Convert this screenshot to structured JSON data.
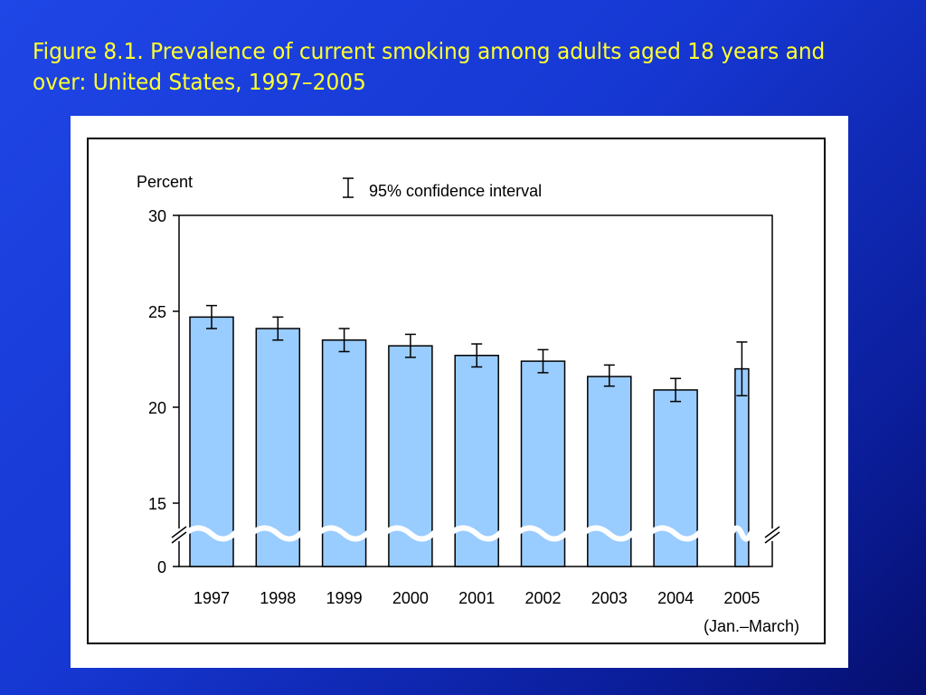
{
  "slide": {
    "title": "Figure 8.1. Prevalence of current smoking among adults aged 18 years and over: United States, 1997–2005"
  },
  "colors": {
    "background": "#1637d2",
    "title": "#ffff33",
    "bar_fill": "#99ccff",
    "bar_stroke": "#000000"
  },
  "chart_data": {
    "type": "bar",
    "ylabel": "Percent",
    "legend": {
      "label": "95% confidence interval",
      "position": "top-center"
    },
    "categories": [
      "1997",
      "1998",
      "1999",
      "2000",
      "2001",
      "2002",
      "2003",
      "2004",
      "2005"
    ],
    "category_note": "(Jan.–March)",
    "values": [
      24.7,
      24.1,
      23.5,
      23.2,
      22.7,
      22.4,
      21.6,
      20.9,
      22.0
    ],
    "ci_low": [
      24.1,
      23.5,
      22.9,
      22.6,
      22.1,
      21.8,
      21.1,
      20.3,
      20.6
    ],
    "ci_high": [
      25.3,
      24.7,
      24.1,
      23.8,
      23.3,
      23.0,
      22.2,
      21.5,
      23.4
    ],
    "yticks": [
      0,
      15,
      20,
      25,
      30
    ],
    "ylim": [
      0,
      30
    ],
    "axis_break": true,
    "grid": false
  }
}
